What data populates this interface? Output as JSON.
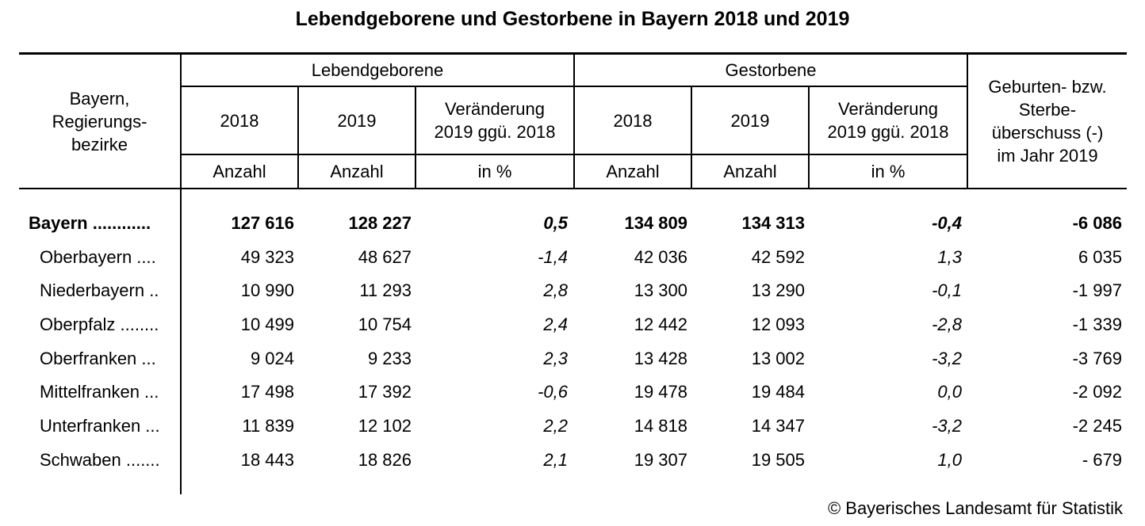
{
  "title": "Lebendgeborene und Gestorbene in Bayern 2018 und 2019",
  "header": {
    "region_label": "Bayern,\nRegierungs-\nbezirke",
    "group_births": "Lebendgeborene",
    "group_deaths": "Gestorbene",
    "balance_label": "Geburten- bzw.\nSterbe-\nüberschuss (-)\nim Jahr 2019",
    "year_2018": "2018",
    "year_2019": "2019",
    "change_label": "Veränderung\n2019 ggü. 2018",
    "unit_count": "Anzahl",
    "unit_percent": "in %"
  },
  "rows": [
    {
      "name": "Bayern ............",
      "b2018": "127 616",
      "b2019": "128 227",
      "bchg": "0,5",
      "d2018": "134 809",
      "d2019": "134 313",
      "dchg": "-0,4",
      "balance": "-6 086"
    },
    {
      "name": "Oberbayern ....",
      "b2018": "49 323",
      "b2019": "48 627",
      "bchg": "-1,4",
      "d2018": "42 036",
      "d2019": "42 592",
      "dchg": "1,3",
      "balance": "6 035"
    },
    {
      "name": "Niederbayern ..",
      "b2018": "10 990",
      "b2019": "11 293",
      "bchg": "2,8",
      "d2018": "13 300",
      "d2019": "13 290",
      "dchg": "-0,1",
      "balance": "-1 997"
    },
    {
      "name": "Oberpfalz ........",
      "b2018": "10 499",
      "b2019": "10 754",
      "bchg": "2,4",
      "d2018": "12 442",
      "d2019": "12 093",
      "dchg": "-2,8",
      "balance": "-1 339"
    },
    {
      "name": "Oberfranken ...",
      "b2018": "9 024",
      "b2019": "9 233",
      "bchg": "2,3",
      "d2018": "13 428",
      "d2019": "13 002",
      "dchg": "-3,2",
      "balance": "-3 769"
    },
    {
      "name": "Mittelfranken ...",
      "b2018": "17 498",
      "b2019": "17 392",
      "bchg": "-0,6",
      "d2018": "19 478",
      "d2019": "19 484",
      "dchg": "0,0",
      "balance": "-2 092"
    },
    {
      "name": "Unterfranken ...",
      "b2018": "11 839",
      "b2019": "12 102",
      "bchg": "2,2",
      "d2018": "14 818",
      "d2019": "14 347",
      "dchg": "-3,2",
      "balance": "-2 245"
    },
    {
      "name": "Schwaben .......",
      "b2018": "18 443",
      "b2019": "18 826",
      "bchg": "2,1",
      "d2018": "19 307",
      "d2019": "19 505",
      "dchg": "1,0",
      "balance": "- 679"
    }
  ],
  "footer": "© Bayerisches Landesamt für Statistik"
}
